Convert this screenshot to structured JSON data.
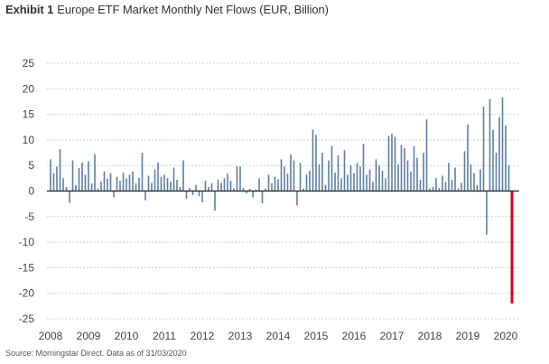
{
  "header": {
    "exhibit": "Exhibit 1",
    "title": "Europe ETF Market Monthly Net Flows (EUR, Billion)"
  },
  "footer": {
    "source": "Source: Morningstar Direct. Data as of 31/03/2020"
  },
  "colors": {
    "bar": "#5b7fa3",
    "highlight": "#e0001b",
    "zero_line": "#222222",
    "grid": "#cccccc"
  },
  "chart_data": {
    "type": "bar",
    "title": "Europe ETF Market Monthly Net Flows (EUR, Billion)",
    "xlabel": "",
    "ylabel": "",
    "ylim": [
      -25,
      25
    ],
    "yticks": [
      25,
      20,
      15,
      10,
      5,
      0,
      -5,
      -10,
      -15,
      -20,
      -25
    ],
    "x_tick_labels": [
      "2008",
      "2009",
      "2010",
      "2011",
      "2012",
      "2013",
      "2014",
      "2015",
      "2016",
      "2017",
      "2018",
      "2019",
      "2020"
    ],
    "grid": true,
    "highlight_last": true,
    "categories": [
      "2008-01",
      "2008-02",
      "2008-03",
      "2008-04",
      "2008-05",
      "2008-06",
      "2008-07",
      "2008-08",
      "2008-09",
      "2008-10",
      "2008-11",
      "2008-12",
      "2009-01",
      "2009-02",
      "2009-03",
      "2009-04",
      "2009-05",
      "2009-06",
      "2009-07",
      "2009-08",
      "2009-09",
      "2009-10",
      "2009-11",
      "2009-12",
      "2010-01",
      "2010-02",
      "2010-03",
      "2010-04",
      "2010-05",
      "2010-06",
      "2010-07",
      "2010-08",
      "2010-09",
      "2010-10",
      "2010-11",
      "2010-12",
      "2011-01",
      "2011-02",
      "2011-03",
      "2011-04",
      "2011-05",
      "2011-06",
      "2011-07",
      "2011-08",
      "2011-09",
      "2011-10",
      "2011-11",
      "2011-12",
      "2012-01",
      "2012-02",
      "2012-03",
      "2012-04",
      "2012-05",
      "2012-06",
      "2012-07",
      "2012-08",
      "2012-09",
      "2012-10",
      "2012-11",
      "2012-12",
      "2013-01",
      "2013-02",
      "2013-03",
      "2013-04",
      "2013-05",
      "2013-06",
      "2013-07",
      "2013-08",
      "2013-09",
      "2013-10",
      "2013-11",
      "2013-12",
      "2014-01",
      "2014-02",
      "2014-03",
      "2014-04",
      "2014-05",
      "2014-06",
      "2014-07",
      "2014-08",
      "2014-09",
      "2014-10",
      "2014-11",
      "2014-12",
      "2015-01",
      "2015-02",
      "2015-03",
      "2015-04",
      "2015-05",
      "2015-06",
      "2015-07",
      "2015-08",
      "2015-09",
      "2015-10",
      "2015-11",
      "2015-12",
      "2016-01",
      "2016-02",
      "2016-03",
      "2016-04",
      "2016-05",
      "2016-06",
      "2016-07",
      "2016-08",
      "2016-09",
      "2016-10",
      "2016-11",
      "2016-12",
      "2017-01",
      "2017-02",
      "2017-03",
      "2017-04",
      "2017-05",
      "2017-06",
      "2017-07",
      "2017-08",
      "2017-09",
      "2017-10",
      "2017-11",
      "2017-12",
      "2018-01",
      "2018-02",
      "2018-03",
      "2018-04",
      "2018-05",
      "2018-06",
      "2018-07",
      "2018-08",
      "2018-09",
      "2018-10",
      "2018-11",
      "2018-12",
      "2019-01",
      "2019-02",
      "2019-03",
      "2019-04",
      "2019-05",
      "2019-06",
      "2019-07",
      "2019-08",
      "2019-09",
      "2019-10",
      "2019-11",
      "2019-12",
      "2020-01",
      "2020-02",
      "2020-03"
    ],
    "values": [
      6.2,
      3.5,
      4.8,
      8.2,
      2.5,
      0.8,
      -2.3,
      6.0,
      1.2,
      4.5,
      5.6,
      3.2,
      5.8,
      1.5,
      7.2,
      0.5,
      1.8,
      3.8,
      2.4,
      3.5,
      -1.2,
      2.8,
      2.0,
      3.6,
      2.5,
      3.2,
      3.8,
      1.5,
      2.6,
      7.5,
      -1.8,
      3.0,
      1.6,
      4.2,
      5.6,
      2.8,
      3.2,
      2.5,
      1.8,
      4.6,
      2.2,
      0.8,
      6.0,
      -1.5,
      0.6,
      -0.8,
      1.2,
      -1.0,
      -2.2,
      2.0,
      0.8,
      1.5,
      -3.8,
      2.2,
      1.6,
      2.5,
      3.4,
      2.0,
      0.5,
      4.8,
      4.8,
      0.6,
      -0.5,
      0.4,
      -1.2,
      0.3,
      2.5,
      -2.4,
      0.5,
      3.2,
      1.5,
      2.8,
      2.3,
      6.2,
      4.8,
      3.4,
      7.2,
      6.0,
      -2.8,
      5.5,
      0.5,
      3.2,
      4.0,
      12.0,
      11.0,
      5.2,
      7.5,
      1.2,
      6.0,
      8.8,
      3.6,
      7.0,
      2.5,
      8.0,
      3.2,
      5.0,
      3.5,
      5.5,
      4.8,
      9.2,
      3.2,
      4.2,
      1.8,
      6.2,
      5.0,
      4.0,
      2.5,
      10.8,
      11.2,
      10.6,
      5.2,
      9.0,
      8.4,
      6.0,
      3.8,
      8.8,
      6.5,
      2.2,
      7.5,
      14.0,
      0.5,
      0.8,
      2.5,
      0.6,
      3.0,
      1.8,
      5.5,
      2.2,
      4.6,
      0.5,
      1.6,
      7.8,
      13.0,
      5.2,
      3.5,
      1.2,
      4.2,
      16.5,
      -8.5,
      18.0,
      12.0,
      7.5,
      14.5,
      18.3,
      12.8,
      5.0,
      -22.0
    ]
  }
}
